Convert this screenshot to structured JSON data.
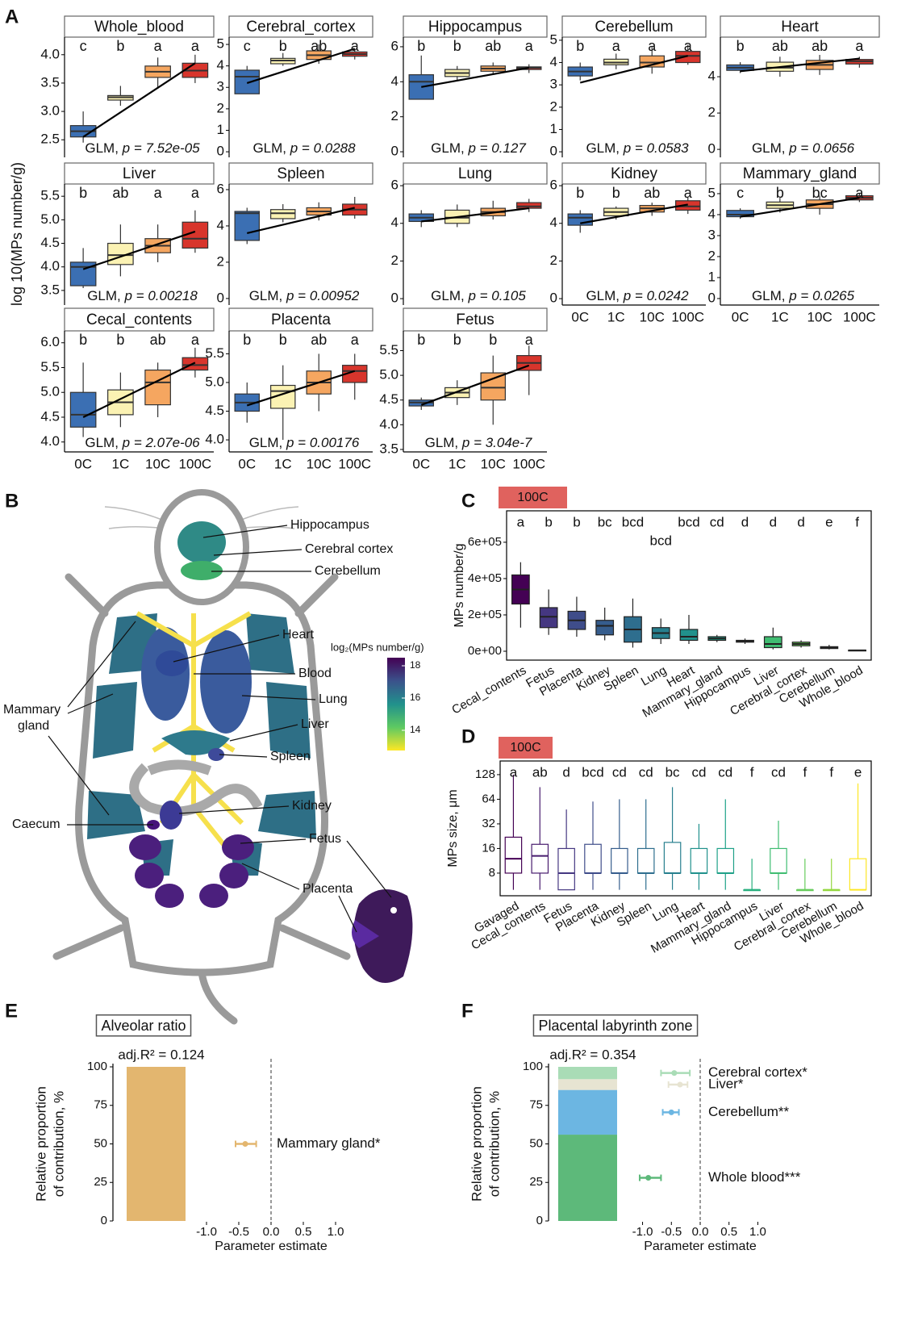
{
  "panel_labels": [
    "A",
    "B",
    "C",
    "D",
    "E",
    "F"
  ],
  "panel_a": {
    "ylabel": "log 10(MPs number/g)",
    "categories": [
      "0C",
      "1C",
      "10C",
      "100C"
    ],
    "colors": [
      "#3b6fb3",
      "#fbf2b3",
      "#f5a660",
      "#d8352c"
    ],
    "glm": "GLM, "
  },
  "panel_b": {
    "labels": [
      "Hippocampus",
      "Cerebral cortex",
      "Cerebellum",
      "Heart",
      "Blood",
      "Lung",
      "Liver",
      "Spleen",
      "Kidney",
      "Caecum",
      "Fetus",
      "Placenta"
    ],
    "mammary": [
      "Mammary",
      "gland"
    ],
    "colorbar": {
      "title": "log₂(MPs number/g)",
      "range": [
        12.75,
        18.5
      ],
      "ticks": [
        14,
        16,
        18
      ]
    }
  },
  "chart_data": [
    {
      "type": "box",
      "title": "Whole_blood",
      "letters": [
        "c",
        "b",
        "a",
        "a"
      ],
      "p_label": "p = 7.52e-05",
      "ylim": [
        2.19,
        4.31
      ],
      "yticks": [
        2.5,
        {
          "value": 3,
          "label": "3.0"
        },
        3.5,
        {
          "value": 4,
          "label": "4.0"
        }
      ],
      "trend": [
        2.55,
        3.85
      ],
      "boxes": [
        [
          2.45,
          2.55,
          2.65,
          2.75,
          3.0
        ],
        [
          3.1,
          3.2,
          3.25,
          3.28,
          3.45
        ],
        [
          3.4,
          3.6,
          3.7,
          3.8,
          3.95
        ],
        [
          3.5,
          3.6,
          3.72,
          3.85,
          4.0
        ]
      ]
    },
    {
      "type": "box",
      "title": "Cerebral_cortex",
      "letters": [
        "c",
        "b",
        "ab",
        "a"
      ],
      "p_label": "p = 0.0288",
      "ylim": [
        -0.26,
        5.34
      ],
      "yticks": [
        0,
        1,
        2,
        3,
        4,
        5
      ],
      "trend": [
        3.2,
        4.8
      ],
      "boxes": [
        [
          2.7,
          2.7,
          3.5,
          3.8,
          4.0
        ],
        [
          4.0,
          4.1,
          4.25,
          4.35,
          4.6
        ],
        [
          4.1,
          4.3,
          4.5,
          4.7,
          5.0
        ],
        [
          4.3,
          4.45,
          4.55,
          4.65,
          4.8
        ]
      ]
    },
    {
      "type": "box",
      "title": "Hippocampus",
      "letters": [
        "b",
        "b",
        "ab",
        "a"
      ],
      "p_label": "p = 0.127",
      "ylim": [
        -0.32,
        6.55
      ],
      "yticks": [
        0,
        2,
        4,
        6
      ],
      "trend": [
        3.7,
        4.8
      ],
      "boxes": [
        [
          3.0,
          3.0,
          4.0,
          4.4,
          5.5
        ],
        [
          4.1,
          4.3,
          4.5,
          4.7,
          4.9
        ],
        [
          4.4,
          4.6,
          4.75,
          4.9,
          5.1
        ],
        [
          4.5,
          4.7,
          4.8,
          4.85,
          5.0
        ]
      ]
    },
    {
      "type": "box",
      "title": "Cerebellum",
      "letters": [
        "b",
        "a",
        "a",
        "a"
      ],
      "p_label": "p = 0.0583",
      "ylim": [
        -0.25,
        5.14
      ],
      "yticks": [
        0,
        1,
        2,
        3,
        4,
        5
      ],
      "trend": [
        3.1,
        4.3
      ],
      "boxes": [
        [
          3.2,
          3.4,
          3.6,
          3.8,
          4.0
        ],
        [
          3.7,
          3.9,
          4.0,
          4.15,
          4.4
        ],
        [
          3.5,
          3.8,
          4.0,
          4.3,
          4.7
        ],
        [
          3.9,
          4.0,
          4.3,
          4.5,
          4.8
        ]
      ]
    },
    {
      "type": "box",
      "title": "Heart",
      "letters": [
        "b",
        "ab",
        "ab",
        "a"
      ],
      "p_label": "p = 0.0656",
      "ylim": [
        -0.44,
        6.18
      ],
      "yticks": [
        0,
        2,
        4
      ],
      "trend": [
        4.3,
        5.0
      ],
      "boxes": [
        [
          4.2,
          4.35,
          4.5,
          4.65,
          4.8
        ],
        [
          4.0,
          4.3,
          4.5,
          4.8,
          5.1
        ],
        [
          4.1,
          4.4,
          4.65,
          4.9,
          5.2
        ],
        [
          4.5,
          4.7,
          4.85,
          4.95,
          5.1
        ]
      ]
    },
    {
      "type": "box",
      "title": "Liver",
      "letters": [
        "b",
        "ab",
        "a",
        "a"
      ],
      "p_label": "p = 0.00218",
      "ylim": [
        3.19,
        5.76
      ],
      "yticks": [
        3.5,
        {
          "value": 4,
          "label": "4.0"
        },
        4.5,
        {
          "value": 5,
          "label": "5.0"
        },
        5.5
      ],
      "trend": [
        3.95,
        4.75
      ],
      "boxes": [
        [
          3.55,
          3.6,
          4.0,
          4.1,
          4.4
        ],
        [
          3.8,
          4.05,
          4.25,
          4.5,
          4.9
        ],
        [
          4.1,
          4.3,
          4.45,
          4.6,
          4.9
        ],
        [
          4.3,
          4.4,
          4.6,
          4.95,
          5.2
        ]
      ]
    },
    {
      "type": "box",
      "title": "Spleen",
      "p_label": "p = 0.00952",
      "ylim": [
        -0.36,
        6.31
      ],
      "yticks": [
        0,
        2,
        4,
        6
      ],
      "trend": [
        3.6,
        5.0
      ],
      "boxes": [
        [
          3.0,
          3.2,
          4.7,
          4.8,
          5.0
        ],
        [
          4.2,
          4.4,
          4.7,
          4.9,
          5.2
        ],
        [
          4.3,
          4.6,
          4.8,
          5.0,
          5.3
        ],
        [
          4.4,
          4.6,
          4.9,
          5.2,
          5.6
        ]
      ]
    },
    {
      "type": "box",
      "title": "Lung",
      "p_label": "p = 0.105",
      "ylim": [
        -0.34,
        6.09
      ],
      "yticks": [
        0,
        2,
        4,
        6
      ],
      "trend": [
        4.1,
        4.8
      ],
      "boxes": [
        [
          3.8,
          4.1,
          4.3,
          4.5,
          4.7
        ],
        [
          3.8,
          4.0,
          4.3,
          4.7,
          5.0
        ],
        [
          4.2,
          4.4,
          4.6,
          4.8,
          5.2
        ],
        [
          4.6,
          4.8,
          4.9,
          5.1,
          5.3
        ]
      ]
    },
    {
      "type": "box",
      "title": "Kidney",
      "letters": [
        "b",
        "b",
        "ab",
        "a"
      ],
      "p_label": "p = 0.0242",
      "ylim": [
        -0.34,
        6.09
      ],
      "yticks": [
        0,
        2,
        4,
        6
      ],
      "trend": [
        4.0,
        5.0
      ],
      "boxes": [
        [
          3.5,
          3.9,
          4.3,
          4.5,
          4.7
        ],
        [
          4.2,
          4.4,
          4.6,
          4.8,
          4.9
        ],
        [
          4.4,
          4.6,
          4.8,
          4.95,
          5.1
        ],
        [
          4.5,
          4.7,
          4.9,
          5.2,
          5.4
        ]
      ]
    },
    {
      "type": "box",
      "title": "Mammary_gland",
      "letters": [
        "c",
        "b",
        "bc",
        "a"
      ],
      "p_label": "p = 0.0265",
      "ylim": [
        -0.31,
        5.46
      ],
      "yticks": [
        0,
        1,
        2,
        3,
        4,
        5
      ],
      "trend": [
        3.9,
        4.8
      ],
      "boxes": [
        [
          3.8,
          3.9,
          4.0,
          4.2,
          4.3
        ],
        [
          4.1,
          4.3,
          4.45,
          4.6,
          4.8
        ],
        [
          4.0,
          4.3,
          4.5,
          4.7,
          4.9
        ],
        [
          4.6,
          4.7,
          4.8,
          4.9,
          5.0
        ]
      ]
    },
    {
      "type": "box",
      "title": "Cecal_contents",
      "letters": [
        "b",
        "b",
        "ab",
        "a"
      ],
      "p_label": "p = 2.07e-06",
      "ylim": [
        3.8,
        6.24
      ],
      "yticks": [
        {
          "value": 4,
          "label": "4.0"
        },
        4.5,
        {
          "value": 5,
          "label": "5.0"
        },
        5.5,
        {
          "value": 6,
          "label": "6.0"
        }
      ],
      "trend": [
        4.5,
        5.6
      ],
      "boxes": [
        [
          4.1,
          4.3,
          4.55,
          5.0,
          5.6
        ],
        [
          4.3,
          4.55,
          4.8,
          5.05,
          5.4
        ],
        [
          4.5,
          4.75,
          5.2,
          5.45,
          5.6
        ],
        [
          5.3,
          5.45,
          5.55,
          5.7,
          5.9
        ]
      ]
    },
    {
      "type": "box",
      "title": "Placenta",
      "letters": [
        "b",
        "b",
        "ab",
        "a"
      ],
      "p_label": "p = 0.00176",
      "ylim": [
        3.79,
        5.9
      ],
      "yticks": [
        {
          "value": 4,
          "label": "4.0"
        },
        4.5,
        {
          "value": 5,
          "label": "5.0"
        },
        5.5
      ],
      "trend": [
        4.6,
        5.2
      ],
      "boxes": [
        [
          4.3,
          4.5,
          4.65,
          4.8,
          5.0
        ],
        [
          4.0,
          4.55,
          4.85,
          4.95,
          5.3
        ],
        [
          4.5,
          4.8,
          5.0,
          5.2,
          5.5
        ],
        [
          4.7,
          5.0,
          5.2,
          5.3,
          5.5
        ]
      ]
    },
    {
      "type": "box",
      "title": "Fetus",
      "letters": [
        "b",
        "b",
        "b",
        "a"
      ],
      "p_label": "p = 3.04e-7",
      "ylim": [
        3.45,
        5.9
      ],
      "yticks": [
        3.5,
        {
          "value": 4,
          "label": "4.0"
        },
        4.5,
        {
          "value": 5,
          "label": "5.0"
        },
        5.5
      ],
      "trend": [
        4.4,
        5.2
      ],
      "boxes": [
        [
          4.3,
          4.38,
          4.45,
          4.5,
          4.55
        ],
        [
          4.4,
          4.55,
          4.65,
          4.75,
          4.9
        ],
        [
          4.0,
          4.5,
          4.75,
          5.05,
          5.4
        ],
        [
          4.6,
          5.1,
          5.25,
          5.4,
          5.6
        ]
      ]
    },
    {
      "type": "box",
      "header": "100C",
      "ylabel": "MPs number/g",
      "filled": true,
      "categories": [
        "Cecal_contents",
        "Fetus",
        "Placenta",
        "Kidney",
        "Spleen",
        "Lung",
        "Heart",
        "Mammary_gland",
        "Hippocampus",
        "Liver",
        "Cerebral_cortex",
        "Cerebellum",
        "Whole_blood"
      ],
      "letters": [
        "a",
        "b",
        "b",
        "bc",
        "bcd",
        "bcd",
        "bcd",
        "cd",
        "d",
        "d",
        "d",
        "e",
        "f"
      ],
      "colors": [
        "#440154",
        "#453781",
        "#3f4d8a",
        "#365d8d",
        "#2e6e8e",
        "#277f8e",
        "#21918c",
        "#1fa188",
        "#29af7f",
        "#40bd72",
        "#67cc5c",
        "#95d840",
        "#fde725"
      ],
      "ylim": [
        -48900,
        773000
      ],
      "yticks": [
        {
          "value": 0,
          "label": "0e+00"
        },
        {
          "value": 200000,
          "label": "2e+05"
        },
        {
          "value": 400000,
          "label": "4e+05"
        },
        {
          "value": 600000,
          "label": "6e+05"
        }
      ],
      "boxes": [
        [
          130000,
          260000,
          340000,
          420000,
          490000
        ],
        [
          90000,
          130000,
          190000,
          240000,
          340000
        ],
        [
          80000,
          120000,
          170000,
          220000,
          300000
        ],
        [
          60000,
          90000,
          140000,
          170000,
          240000
        ],
        [
          20000,
          50000,
          120000,
          190000,
          290000
        ],
        [
          40000,
          70000,
          100000,
          130000,
          180000
        ],
        [
          40000,
          60000,
          80000,
          120000,
          200000
        ],
        [
          50000,
          60000,
          70000,
          80000,
          90000
        ],
        [
          40000,
          50000,
          55000,
          60000,
          70000
        ],
        [
          10000,
          20000,
          40000,
          80000,
          130000
        ],
        [
          20000,
          30000,
          40000,
          50000,
          60000
        ],
        [
          10000,
          15000,
          20000,
          25000,
          35000
        ],
        [
          2000,
          4000,
          5000,
          6000,
          8000
        ]
      ]
    },
    {
      "type": "box",
      "header": "100C",
      "ylabel": "MPs size, μm",
      "filled": false,
      "log_base": 2,
      "categories": [
        "Gavaged",
        "Cecal_contents",
        "Fetus",
        "Placenta",
        "Kidney",
        "Spleen",
        "Lung",
        "Heart",
        "Mammary_gland",
        "Hippocampus",
        "Liver",
        "Cerebral_cortex",
        "Cerebellum",
        "Whole_blood"
      ],
      "letters": [
        "a",
        "ab",
        "d",
        "bcd",
        "cd",
        "cd",
        "bc",
        "cd",
        "cd",
        "f",
        "cd",
        "f",
        "f",
        "e"
      ],
      "colors": [
        "#440154",
        "#481c6e",
        "#453781",
        "#3f4d8a",
        "#365d8d",
        "#2e6e8e",
        "#277f8e",
        "#21918c",
        "#1fa188",
        "#29af7f",
        "#40bd72",
        "#67cc5c",
        "#95d840",
        "#fde725"
      ],
      "ylim": [
        4.23,
        188
      ],
      "yticks": [
        8,
        16,
        32,
        64,
        128
      ],
      "boxes": [
        [
          5,
          8,
          12,
          22,
          128
        ],
        [
          5,
          8,
          13,
          18,
          90
        ],
        [
          5,
          5,
          8,
          16,
          48
        ],
        [
          5,
          8,
          8,
          18,
          60
        ],
        [
          5,
          8,
          8,
          16,
          64
        ],
        [
          5,
          8,
          8,
          16,
          64
        ],
        [
          5,
          8,
          8,
          19,
          90
        ],
        [
          5,
          8,
          8,
          16,
          32
        ],
        [
          5,
          8,
          8,
          16,
          64
        ],
        [
          5,
          5,
          5,
          5,
          12
        ],
        [
          5,
          8,
          8,
          16,
          35
        ],
        [
          5,
          5,
          5,
          5,
          12
        ],
        [
          5,
          5,
          5,
          5,
          12
        ],
        [
          5,
          5,
          5,
          12,
          100
        ]
      ]
    },
    {
      "type": "contribution",
      "title": "Alveolar ratio",
      "annotation": "adj.R² = 0.124",
      "ylabel": [
        "Relative proportion",
        "of contribution, %"
      ],
      "xlabel": "Parameter estimate",
      "ylim": [
        0,
        100
      ],
      "yticks": [
        0,
        25,
        50,
        75,
        100
      ],
      "xlim": [
        -1.1,
        1.1
      ],
      "xticks": [
        {
          "value": -1,
          "label": "-1.0"
        },
        {
          "value": -0.5,
          "label": "-0.5"
        },
        {
          "value": 0,
          "label": "0.0"
        },
        {
          "value": 0.5,
          "label": "0.5"
        },
        {
          "value": 1,
          "label": "1.0"
        }
      ],
      "series": [
        {
          "name": "Mammary gland*",
          "color": "#e3b66f",
          "value": 100,
          "estimate": -0.4,
          "lower": -0.55,
          "upper": -0.23
        }
      ]
    },
    {
      "type": "contribution",
      "title": "Placental labyrinth zone",
      "annotation": "adj.R² = 0.354",
      "ylabel": [
        "Relative proportion",
        "of contribution, %"
      ],
      "xlabel": "Parameter estimate",
      "ylim": [
        0,
        100
      ],
      "yticks": [
        0,
        25,
        50,
        75,
        100
      ],
      "xlim": [
        -1.1,
        1.1
      ],
      "xticks": [
        {
          "value": -1,
          "label": "-1.0"
        },
        {
          "value": -0.5,
          "label": "-0.5"
        },
        {
          "value": 0,
          "label": "0.0"
        },
        {
          "value": 0.5,
          "label": "0.5"
        },
        {
          "value": 1,
          "label": "1.0"
        }
      ],
      "series": [
        {
          "name": "Whole blood***",
          "color": "#5db97a",
          "value": 56,
          "estimate": -0.9,
          "lower": -1.05,
          "upper": -0.68
        },
        {
          "name": "Cerebellum**",
          "color": "#6cb6e2",
          "value": 29,
          "estimate": -0.5,
          "lower": -0.65,
          "upper": -0.37
        },
        {
          "name": "Liver*",
          "color": "#e7e4d2",
          "value": 7,
          "estimate": -0.35,
          "lower": -0.55,
          "upper": -0.22
        },
        {
          "name": "Cerebral cortex*",
          "color": "#a9dcb6",
          "value": 8,
          "estimate": -0.45,
          "lower": -0.68,
          "upper": -0.18
        }
      ]
    }
  ]
}
